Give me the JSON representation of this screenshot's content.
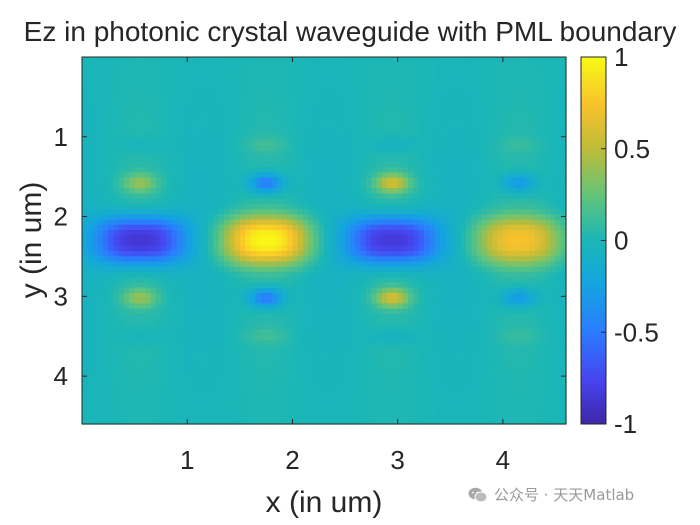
{
  "chart_data": {
    "type": "heatmap",
    "title": "Ez in photonic crystal waveguide with PML boundary",
    "xlabel": "x (in um)",
    "ylabel": "y (in um)",
    "xlim": [
      0,
      4.6
    ],
    "ylim": [
      0,
      4.6
    ],
    "y_reversed": true,
    "xticks": [
      1,
      2,
      3,
      4
    ],
    "yticks": [
      1,
      2,
      3,
      4
    ],
    "colormap": "parula",
    "clim": [
      -1,
      1
    ],
    "colorbar_ticks": [
      1,
      0.5,
      0,
      -0.5,
      -1
    ],
    "colorbar_tick_labels": [
      "1",
      "0.5",
      "0",
      "-0.5",
      "-1"
    ],
    "field": {
      "waveguide_center_y": 2.3,
      "period_x": 2.47,
      "extrema": [
        {
          "x": 0.55,
          "y": 2.3,
          "value": -0.92
        },
        {
          "x": 1.75,
          "y": 2.3,
          "value": 0.93
        },
        {
          "x": 2.95,
          "y": 2.3,
          "value": -0.9
        },
        {
          "x": 4.15,
          "y": 2.3,
          "value": 0.68
        }
      ]
    },
    "grid": false,
    "legend": "none"
  },
  "watermark": {
    "text": "公众号 · 天天Matlab"
  }
}
